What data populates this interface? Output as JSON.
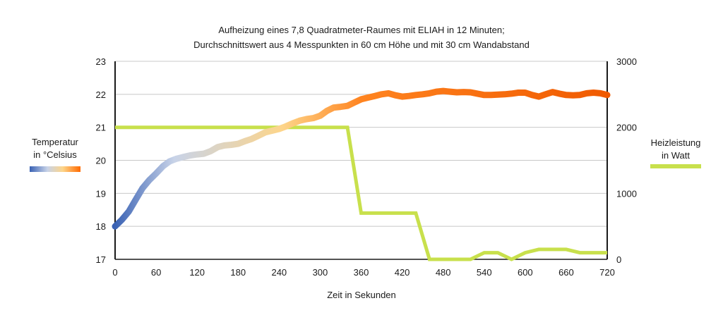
{
  "chart_data": {
    "type": "line",
    "title": "Aufheizung eines 7,8 Quadratmeter-Raumes mit ELIAH in 12 Minuten;",
    "subtitle": "Durchschnittswert aus 4 Messpunkten in 60 cm Höhe und mit 30 cm Wandabstand",
    "xlabel": "Zeit in Sekunden",
    "xlim": [
      0,
      720
    ],
    "xticks": [
      0,
      60,
      120,
      180,
      240,
      300,
      360,
      420,
      480,
      540,
      600,
      660,
      720
    ],
    "y_left": {
      "label_line1": "Temperatur",
      "label_line2": "in °Celsius",
      "ylim": [
        17,
        23
      ],
      "ticks": [
        17,
        18,
        19,
        20,
        21,
        22,
        23
      ]
    },
    "y_right": {
      "label_line1": "Heizleistung",
      "label_line2": "in Watt",
      "ylim": [
        0,
        3000
      ],
      "ticks": [
        0,
        1000,
        2000,
        3000
      ]
    },
    "grid": true,
    "series": [
      {
        "axis": "left",
        "gradient": [
          "#3a62b4",
          "#c8d3e8",
          "#fdd58a",
          "#ff6a00",
          "#f05a00"
        ],
        "points": [
          [
            0,
            18.0
          ],
          [
            10,
            18.2
          ],
          [
            20,
            18.45
          ],
          [
            30,
            18.8
          ],
          [
            40,
            19.15
          ],
          [
            50,
            19.4
          ],
          [
            60,
            19.6
          ],
          [
            70,
            19.82
          ],
          [
            80,
            19.97
          ],
          [
            90,
            20.05
          ],
          [
            100,
            20.1
          ],
          [
            110,
            20.15
          ],
          [
            120,
            20.18
          ],
          [
            130,
            20.2
          ],
          [
            140,
            20.28
          ],
          [
            150,
            20.4
          ],
          [
            160,
            20.45
          ],
          [
            170,
            20.47
          ],
          [
            180,
            20.5
          ],
          [
            190,
            20.58
          ],
          [
            200,
            20.65
          ],
          [
            210,
            20.75
          ],
          [
            220,
            20.85
          ],
          [
            230,
            20.9
          ],
          [
            240,
            20.95
          ],
          [
            250,
            21.03
          ],
          [
            260,
            21.12
          ],
          [
            270,
            21.2
          ],
          [
            280,
            21.25
          ],
          [
            290,
            21.28
          ],
          [
            300,
            21.35
          ],
          [
            310,
            21.5
          ],
          [
            320,
            21.6
          ],
          [
            330,
            21.62
          ],
          [
            340,
            21.65
          ],
          [
            350,
            21.75
          ],
          [
            360,
            21.85
          ],
          [
            370,
            21.9
          ],
          [
            380,
            21.95
          ],
          [
            390,
            22.0
          ],
          [
            400,
            22.03
          ],
          [
            410,
            21.97
          ],
          [
            420,
            21.93
          ],
          [
            430,
            21.95
          ],
          [
            440,
            21.98
          ],
          [
            450,
            22.0
          ],
          [
            460,
            22.03
          ],
          [
            470,
            22.08
          ],
          [
            480,
            22.1
          ],
          [
            490,
            22.08
          ],
          [
            500,
            22.06
          ],
          [
            510,
            22.07
          ],
          [
            520,
            22.06
          ],
          [
            530,
            22.02
          ],
          [
            540,
            21.98
          ],
          [
            550,
            21.98
          ],
          [
            560,
            21.99
          ],
          [
            570,
            22.0
          ],
          [
            580,
            22.02
          ],
          [
            590,
            22.05
          ],
          [
            600,
            22.05
          ],
          [
            610,
            21.98
          ],
          [
            620,
            21.93
          ],
          [
            630,
            22.0
          ],
          [
            640,
            22.07
          ],
          [
            650,
            22.02
          ],
          [
            660,
            21.98
          ],
          [
            670,
            21.97
          ],
          [
            680,
            21.98
          ],
          [
            690,
            22.03
          ],
          [
            700,
            22.05
          ],
          [
            710,
            22.03
          ],
          [
            720,
            21.98
          ]
        ]
      },
      {
        "axis": "right",
        "color": "#c8e04c",
        "points": [
          [
            0,
            2000
          ],
          [
            340,
            2000
          ],
          [
            360,
            700
          ],
          [
            440,
            700
          ],
          [
            460,
            0
          ],
          [
            520,
            0
          ],
          [
            540,
            100
          ],
          [
            560,
            100
          ],
          [
            580,
            0
          ],
          [
            600,
            100
          ],
          [
            620,
            150
          ],
          [
            660,
            150
          ],
          [
            680,
            100
          ],
          [
            720,
            100
          ]
        ]
      }
    ],
    "legend_swatches": {
      "temperature_gradient": [
        "#3a62b4",
        "#c8d3e8",
        "#fdd58a",
        "#ff6a00"
      ],
      "power_color": "#c8e04c"
    },
    "colors": {
      "gridline": "#c8c8c8",
      "axis": "#1a1a1a"
    }
  }
}
